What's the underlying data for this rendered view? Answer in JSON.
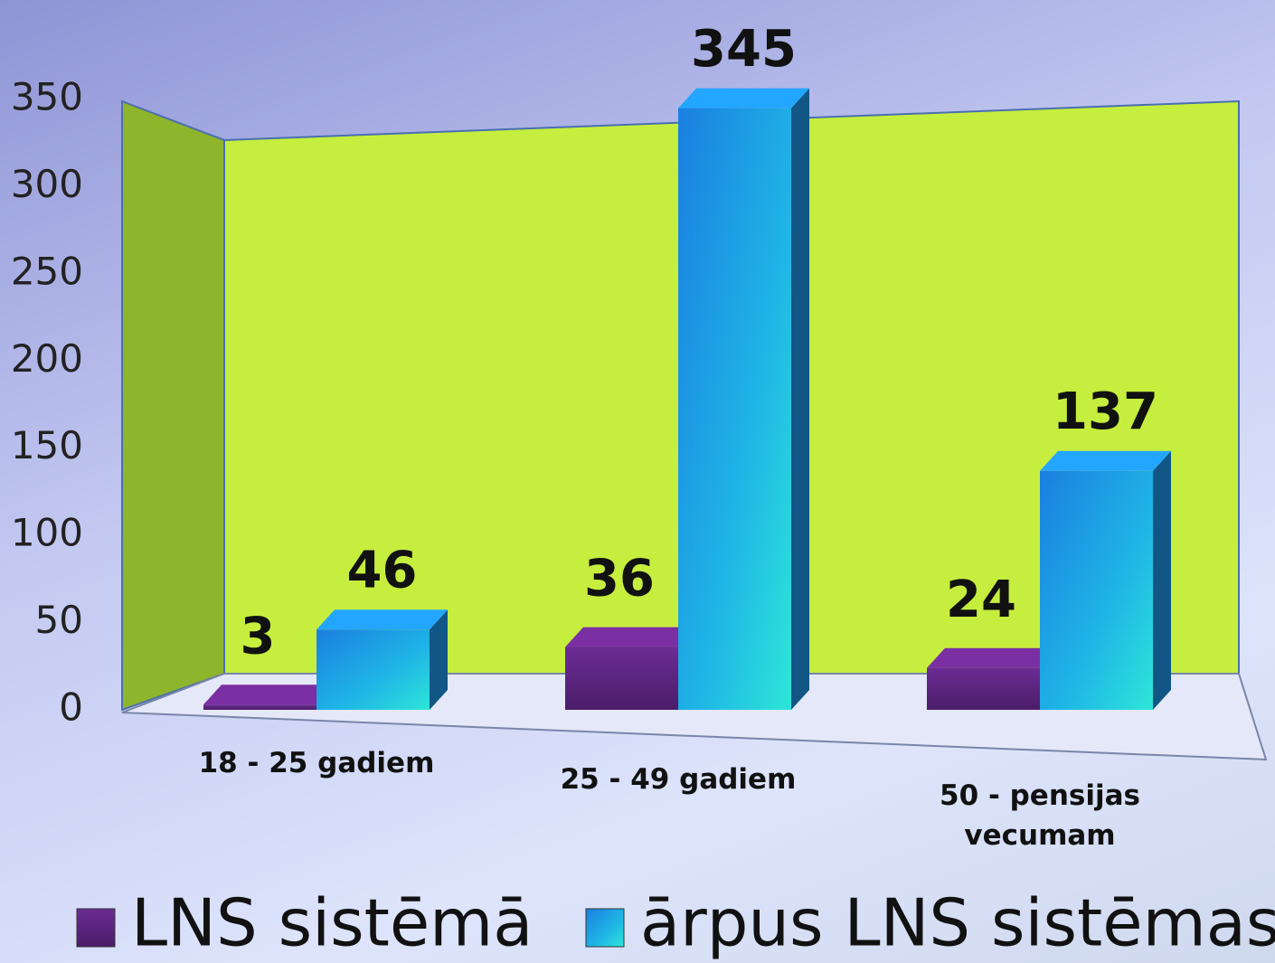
{
  "chart_data": {
    "type": "bar3d",
    "categories": [
      "18 - 25 gadiem",
      "25 - 49 gadiem",
      "50 - pensijas vecumam"
    ],
    "series": [
      {
        "name": "LNS sistēmā",
        "color": "#6a2a8e",
        "values": [
          3,
          36,
          24
        ]
      },
      {
        "name": "ārpus LNS sistēmas",
        "color": "#1e90e0",
        "values": [
          46,
          345,
          137
        ]
      }
    ],
    "ylim": [
      0,
      350
    ],
    "yticks": [
      0,
      50,
      100,
      150,
      200,
      250,
      300,
      350
    ],
    "legend": "bottom"
  }
}
